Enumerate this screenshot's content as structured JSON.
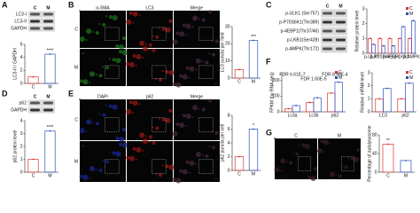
{
  "panels": [
    {
      "label": "A",
      "blot": {
        "lanes": [
          "C",
          "M"
        ],
        "rows": [
          "LC3-I",
          "LC3-II",
          "GAPDH"
        ]
      },
      "chart": {
        "type": "bar",
        "ylabel": "LC3-II / GAPDH",
        "categories": [
          "C",
          "M"
        ],
        "values": [
          1,
          4.5
        ],
        "colors": [
          "#e03030",
          "#3050c0"
        ],
        "ylim": [
          0,
          6
        ],
        "yticks": [
          0,
          2,
          4,
          6
        ],
        "annotation": "****"
      }
    },
    {
      "label": "B",
      "images": {
        "columns": [
          "α-SMA",
          "LC3",
          "Merge"
        ],
        "rows": [
          "C",
          "M"
        ]
      },
      "chart": {
        "type": "bar",
        "ylabel": "LC3 puncta per field",
        "categories": [
          "C",
          "M"
        ],
        "values": [
          5,
          22
        ],
        "colors": [
          "#e03030",
          "#3050c0"
        ],
        "ylim": [
          0,
          30
        ],
        "yticks": [
          0,
          10,
          20,
          30
        ],
        "annotation": "***"
      }
    },
    {
      "label": "C",
      "blot": {
        "lanes": [
          "C",
          "M"
        ],
        "rows": [
          "p-ULK1 (Ser757)",
          "p-P70S6K1(Thr389)",
          "p-4EBP1(Thr37/46)",
          "p-LKB1(Ser428)",
          "p-AMPK(Thr172)"
        ]
      },
      "chart": {
        "type": "bar",
        "ylabel": "Relative protein level",
        "categories": [
          "p-ULK1",
          "p-P70S6K1",
          "p-4EBP1",
          "p-LKB1",
          "p-AMPK"
        ],
        "series": [
          {
            "name": "C",
            "color": "#e03030",
            "values": [
              1,
              1,
              1,
              1,
              1
            ]
          },
          {
            "name": "M",
            "color": "#3050c0",
            "values": [
              0.6,
              0.5,
              0.5,
              1.8,
              2.2
            ]
          }
        ],
        "ylim": [
          0,
          3
        ],
        "yticks": [
          0,
          1,
          2,
          3
        ]
      }
    },
    {
      "label": "D",
      "blot": {
        "lanes": [
          "C",
          "M"
        ],
        "rows": [
          "p62",
          "GAPDH"
        ]
      },
      "chart": {
        "type": "bar",
        "ylabel": "p62 protein level",
        "categories": [
          "C",
          "M"
        ],
        "values": [
          1,
          3.2
        ],
        "colors": [
          "#e03030",
          "#3050c0"
        ],
        "ylim": [
          0,
          4
        ],
        "yticks": [
          0,
          1,
          2,
          3,
          4
        ],
        "annotation": "****"
      }
    },
    {
      "label": "E",
      "images": {
        "columns": [
          "DAPI",
          "p62",
          "Merge"
        ],
        "rows": [
          "C",
          "M"
        ]
      },
      "chart": {
        "type": "bar",
        "ylabel": "p62 puncta per cell",
        "categories": [
          "C",
          "M"
        ],
        "values": [
          2,
          6
        ],
        "colors": [
          "#e03030",
          "#3050c0"
        ],
        "ylim": [
          0,
          8
        ],
        "yticks": [
          0,
          2,
          4,
          6,
          8
        ],
        "annotation": "*"
      }
    },
    {
      "label": "F",
      "chart": {
        "type": "bar",
        "ylabel": "FPKM (by RNA-seq)",
        "categories": [
          "Lc3a",
          "Lc3b",
          "p62"
        ],
        "series": [
          {
            "name": "C",
            "color": "#e03030",
            "values": [
              20,
              60,
              120
            ]
          },
          {
            "name": "M",
            "color": "#3050c0",
            "values": [
              40,
              90,
              190
            ]
          }
        ],
        "ylim": [
          0,
          250
        ],
        "yticks": [
          0,
          100,
          200
        ],
        "annotations": [
          "FDR 6.61E-7",
          "FDR 1.60E-5",
          "FDR 8.48E-4"
        ]
      },
      "chart2": {
        "type": "bar",
        "ylabel": "Relative mRNA level",
        "categories": [
          "LC3",
          "p62"
        ],
        "series": [
          {
            "name": "C",
            "color": "#e03030",
            "values": [
              1,
              1
            ]
          },
          {
            "name": "M",
            "color": "#3050c0",
            "values": [
              1.8,
              2.2
            ]
          }
        ],
        "ylim": [
          0,
          3
        ],
        "yticks": [
          0,
          1,
          2,
          3
        ]
      }
    },
    {
      "label": "G",
      "images": {
        "columns": [
          "C",
          "M"
        ],
        "rows": [],
        "channels": [
          "DAPI",
          "LC3",
          "LAMP1"
        ]
      },
      "chart": {
        "type": "bar",
        "ylabel": "Percentage of autolysosome",
        "categories": [
          "C",
          "M"
        ],
        "values": [
          60,
          25
        ],
        "colors": [
          "#e03030",
          "#3050c0"
        ],
        "ylim": [
          0,
          80
        ],
        "yticks": [
          0,
          40,
          80
        ],
        "annotation": "**"
      }
    }
  ]
}
